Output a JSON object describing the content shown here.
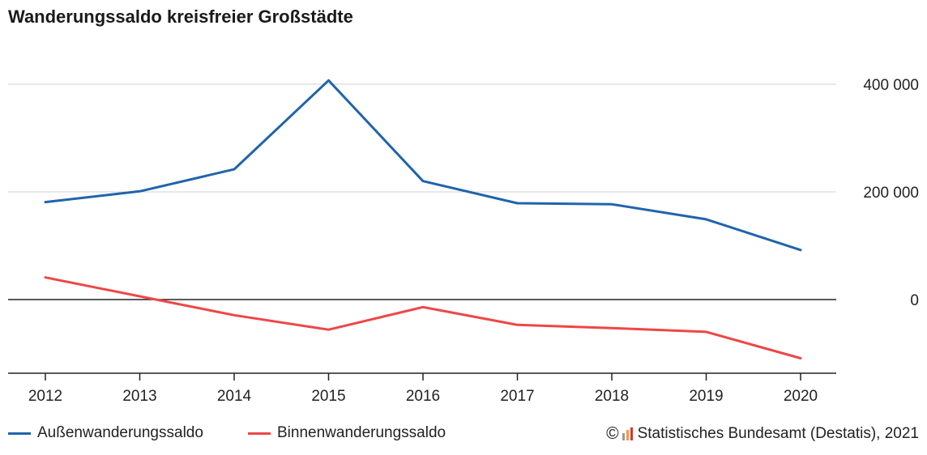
{
  "title": "Wanderungssaldo kreisfreier Großstädte",
  "colors": {
    "aussen": "#1f64ac",
    "binnen": "#ef4646",
    "grid": "#d0d0d0",
    "zero": "#222222",
    "logo_grey": "#9a9a9a",
    "logo_orange": "#f0a030",
    "logo_red": "#e03030"
  },
  "legend": {
    "aussen_label": "Außenwanderungssaldo",
    "binnen_label": "Binnenwanderungssaldo"
  },
  "source": {
    "copyright_symbol": "©",
    "logo_icon": "destatis-logo-icon",
    "text": "Statistisches Bundesamt (Destatis), 2021"
  },
  "chart_data": {
    "type": "line",
    "x": [
      "2012",
      "2013",
      "2014",
      "2015",
      "2016",
      "2017",
      "2018",
      "2019",
      "2020"
    ],
    "series": [
      {
        "name": "Außenwanderungssaldo",
        "values": [
          181000,
          201000,
          242000,
          407000,
          220000,
          179000,
          177000,
          149000,
          92000
        ]
      },
      {
        "name": "Binnenwanderungssaldo",
        "values": [
          41000,
          6000,
          -29000,
          -56000,
          -14000,
          -47000,
          -53000,
          -60000,
          -109000
        ]
      }
    ],
    "ylim": [
      -137000,
      400000
    ],
    "yticks": [
      {
        "value": 400000,
        "label": "400 000"
      },
      {
        "value": 200000,
        "label": "200 000"
      },
      {
        "value": 0,
        "label": "0"
      }
    ],
    "grid": true,
    "y_axis_position": "right",
    "legend_position": "bottom-left"
  }
}
